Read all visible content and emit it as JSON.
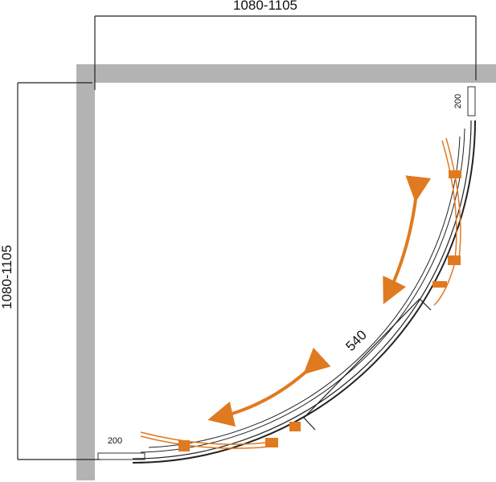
{
  "dimensions": {
    "width": {
      "label": "1080-1105"
    },
    "depth": {
      "label": "1080-1105"
    }
  },
  "opening": {
    "label": "540"
  },
  "profile_top": {
    "label": "200"
  },
  "profile_bottom": {
    "label": "200"
  }
}
